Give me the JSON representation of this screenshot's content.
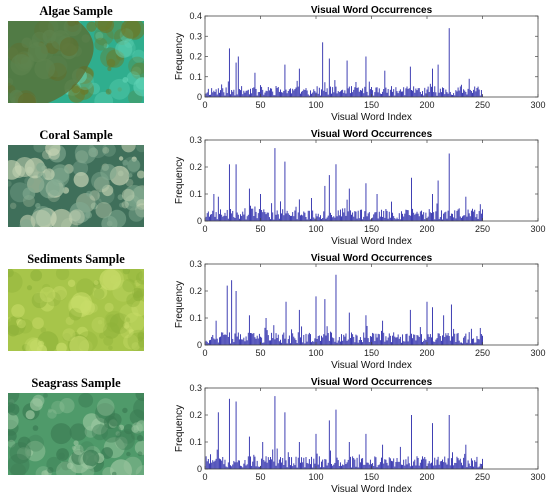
{
  "samples": [
    {
      "label": "Algae Sample",
      "palette": {
        "base": "#2fae8e",
        "accent": "#6b7a2a",
        "light": "#5fd2b4"
      }
    },
    {
      "label": "Coral Sample",
      "palette": {
        "base": "#3f6f5a",
        "accent": "#c9d6b6",
        "light": "#7fa88f"
      }
    },
    {
      "label": "Sediments Sample",
      "palette": {
        "base": "#a7c54a",
        "accent": "#c9dd6a",
        "light": "#8fb23a"
      }
    },
    {
      "label": "Seagrass Sample",
      "palette": {
        "base": "#4f9a6a",
        "accent": "#9cc7a0",
        "light": "#3a7a52"
      }
    }
  ],
  "bar_color": "#2b2bab",
  "chart_data": [
    {
      "type": "bar",
      "title": "Visual Word Occurrences",
      "xlabel": "Visual Word Index",
      "ylabel": "Frequency",
      "xlim": [
        0,
        300
      ],
      "ylim": [
        0,
        0.4
      ],
      "xticks": [
        0,
        50,
        100,
        150,
        200,
        250,
        300
      ],
      "yticks": [
        0,
        0.1,
        0.2,
        0.3,
        0.4
      ],
      "ytick_labels": [
        "0",
        "0.1",
        "0.2",
        "0.3",
        "0.4"
      ],
      "n_bars": 250,
      "peaks": [
        [
          22,
          0.24
        ],
        [
          28,
          0.17
        ],
        [
          30,
          0.2
        ],
        [
          45,
          0.12
        ],
        [
          72,
          0.16
        ],
        [
          85,
          0.14
        ],
        [
          106,
          0.27
        ],
        [
          112,
          0.19
        ],
        [
          128,
          0.18
        ],
        [
          145,
          0.2
        ],
        [
          162,
          0.13
        ],
        [
          185,
          0.15
        ],
        [
          205,
          0.14
        ],
        [
          210,
          0.16
        ],
        [
          220,
          0.34
        ],
        [
          238,
          0.09
        ]
      ],
      "base_level": 0.04,
      "seed": 11
    },
    {
      "type": "bar",
      "title": "Visual Word Occurrences",
      "xlabel": "Visual Word Index",
      "ylabel": "Frequency",
      "xlim": [
        0,
        300
      ],
      "ylim": [
        0,
        0.3
      ],
      "xticks": [
        0,
        50,
        100,
        150,
        200,
        250,
        300
      ],
      "yticks": [
        0,
        0.1,
        0.2,
        0.3
      ],
      "ytick_labels": [
        "0",
        "0.1",
        "0.2",
        "0.3"
      ],
      "n_bars": 250,
      "peaks": [
        [
          8,
          0.1
        ],
        [
          12,
          0.09
        ],
        [
          22,
          0.21
        ],
        [
          28,
          0.21
        ],
        [
          40,
          0.12
        ],
        [
          50,
          0.1
        ],
        [
          63,
          0.27
        ],
        [
          72,
          0.22
        ],
        [
          85,
          0.08
        ],
        [
          108,
          0.13
        ],
        [
          112,
          0.17
        ],
        [
          118,
          0.21
        ],
        [
          130,
          0.12
        ],
        [
          145,
          0.14
        ],
        [
          155,
          0.1
        ],
        [
          186,
          0.16
        ],
        [
          205,
          0.1
        ],
        [
          210,
          0.15
        ],
        [
          220,
          0.25
        ],
        [
          235,
          0.09
        ]
      ],
      "base_level": 0.035,
      "seed": 23
    },
    {
      "type": "bar",
      "title": "Visual Word Occurrences",
      "xlabel": "Visual Word Index",
      "ylabel": "Frequency",
      "xlim": [
        0,
        300
      ],
      "ylim": [
        0,
        0.3
      ],
      "xticks": [
        0,
        50,
        100,
        150,
        200,
        250,
        300
      ],
      "yticks": [
        0,
        0.1,
        0.2,
        0.3
      ],
      "ytick_labels": [
        "0",
        "0.1",
        "0.2",
        "0.3"
      ],
      "n_bars": 250,
      "peaks": [
        [
          10,
          0.09
        ],
        [
          20,
          0.22
        ],
        [
          24,
          0.24
        ],
        [
          28,
          0.2
        ],
        [
          40,
          0.11
        ],
        [
          55,
          0.1
        ],
        [
          73,
          0.16
        ],
        [
          85,
          0.13
        ],
        [
          100,
          0.18
        ],
        [
          108,
          0.17
        ],
        [
          118,
          0.26
        ],
        [
          130,
          0.12
        ],
        [
          145,
          0.11
        ],
        [
          160,
          0.09
        ],
        [
          185,
          0.13
        ],
        [
          200,
          0.16
        ],
        [
          205,
          0.14
        ],
        [
          215,
          0.11
        ],
        [
          222,
          0.15
        ],
        [
          240,
          0.06
        ]
      ],
      "base_level": 0.035,
      "seed": 37
    },
    {
      "type": "bar",
      "title": "Visual Word Occurrences",
      "xlabel": "Visual Word Index",
      "ylabel": "Frequency",
      "xlim": [
        0,
        300
      ],
      "ylim": [
        0,
        0.3
      ],
      "xticks": [
        0,
        50,
        100,
        150,
        200,
        250,
        300
      ],
      "yticks": [
        0,
        0.1,
        0.2,
        0.3
      ],
      "ytick_labels": [
        "0",
        "0.1",
        "0.2",
        "0.3"
      ],
      "n_bars": 250,
      "peaks": [
        [
          12,
          0.21
        ],
        [
          22,
          0.26
        ],
        [
          28,
          0.25
        ],
        [
          40,
          0.12
        ],
        [
          52,
          0.1
        ],
        [
          63,
          0.27
        ],
        [
          72,
          0.21
        ],
        [
          85,
          0.1
        ],
        [
          100,
          0.13
        ],
        [
          112,
          0.18
        ],
        [
          118,
          0.22
        ],
        [
          130,
          0.1
        ],
        [
          145,
          0.13
        ],
        [
          160,
          0.09
        ],
        [
          186,
          0.2
        ],
        [
          205,
          0.17
        ],
        [
          220,
          0.2
        ],
        [
          235,
          0.09
        ]
      ],
      "base_level": 0.035,
      "seed": 51
    }
  ]
}
